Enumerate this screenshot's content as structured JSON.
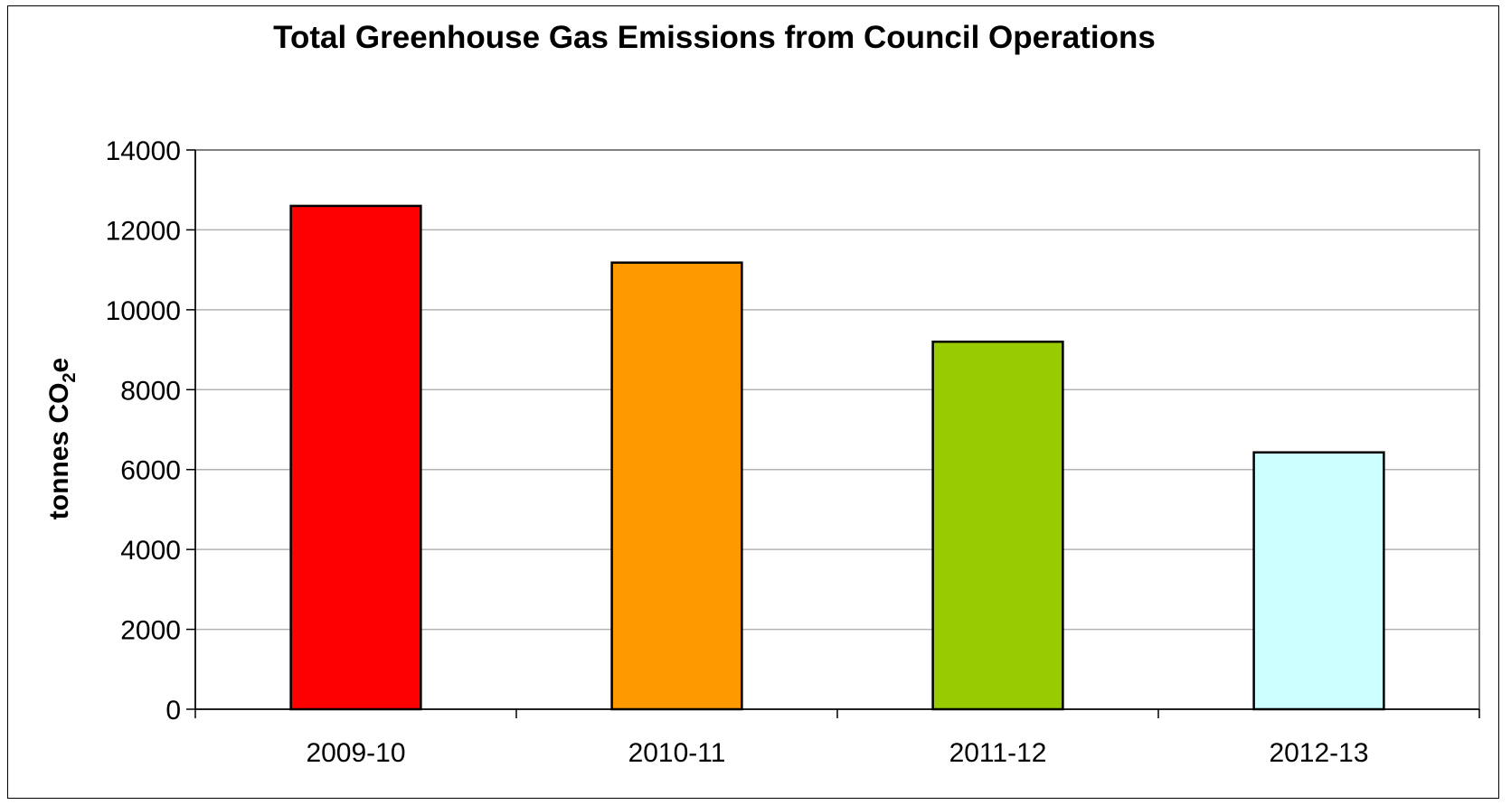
{
  "chart_data": {
    "type": "bar",
    "title": "Total Greenhouse Gas Emissions from Council Operations",
    "xlabel": "",
    "ylabel": {
      "prefix": "tonnes CO",
      "subscript": "2",
      "suffix": "e"
    },
    "categories": [
      "2009-10",
      "2010-11",
      "2011-12",
      "2012-13"
    ],
    "values": [
      12600,
      11180,
      9200,
      6430
    ],
    "colors": [
      "#ff0000",
      "#ff9900",
      "#99cc00",
      "#ccffff"
    ],
    "ylim": [
      0,
      14000
    ],
    "yticks": [
      "0",
      "2000",
      "4000",
      "6000",
      "8000",
      "10000",
      "12000",
      "14000"
    ],
    "grid": true,
    "legend": "none"
  }
}
